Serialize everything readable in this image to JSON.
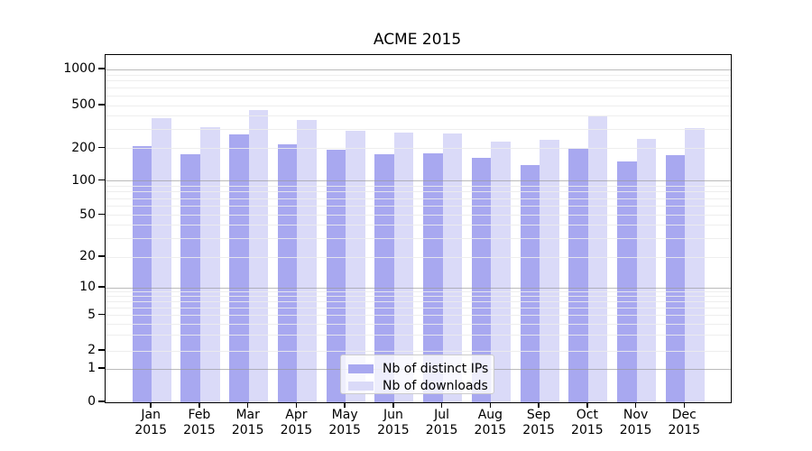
{
  "title": "ACME 2015",
  "colors": {
    "distinct_ips_bar": "#a8a8f0",
    "downloads_bar": "#dadaf8",
    "major_gridline": "#c6c6c6",
    "minor_gridline": "#ececec",
    "axis": "#000000"
  },
  "legend": {
    "items": [
      {
        "label": "Nb of distinct IPs",
        "color": "#a8a8f0"
      },
      {
        "label": "Nb of downloads",
        "color": "#dadaf8"
      }
    ]
  },
  "chart_data": {
    "type": "bar",
    "title": "ACME 2015",
    "categories": [
      "Jan 2015",
      "Feb 2015",
      "Mar 2015",
      "Apr 2015",
      "May 2015",
      "Jun 2015",
      "Jul 2015",
      "Aug 2015",
      "Sep 2015",
      "Oct 2015",
      "Nov 2015",
      "Dec 2015"
    ],
    "series": [
      {
        "name": "Nb of distinct IPs",
        "color": "#a8a8f0",
        "values": [
          210,
          178,
          268,
          220,
          194,
          176,
          179,
          164,
          139,
          199,
          150,
          174
        ]
      },
      {
        "name": "Nb of downloads",
        "color": "#dadaf8",
        "values": [
          380,
          312,
          450,
          368,
          291,
          283,
          276,
          231,
          242,
          398,
          246,
          310
        ]
      }
    ],
    "xlabel": "",
    "ylabel": "",
    "yscale": "symlog",
    "ylim": [
      0,
      1500
    ],
    "yticks": [
      0,
      1,
      2,
      5,
      10,
      20,
      50,
      100,
      200,
      500,
      1000
    ],
    "minor_yticks": [
      2,
      3,
      4,
      5,
      6,
      7,
      8,
      9,
      20,
      30,
      40,
      50,
      60,
      70,
      80,
      90,
      200,
      300,
      400,
      500,
      600,
      700,
      800,
      900
    ],
    "major_grid_yticks": [
      1,
      10,
      100,
      1000
    ],
    "grid": "horizontal",
    "legend_position": "lower center"
  }
}
